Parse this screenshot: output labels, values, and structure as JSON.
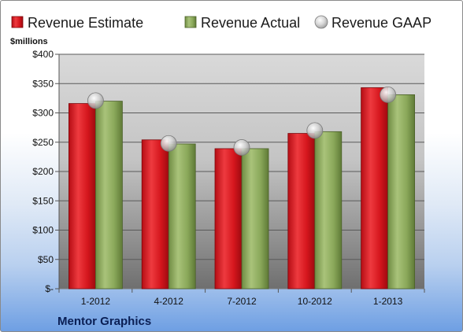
{
  "chart_data": {
    "type": "bar",
    "title": "",
    "company": "Mentor Graphics",
    "ylabel": "$millions",
    "ylim": [
      0,
      400
    ],
    "yticks": [
      0,
      50,
      100,
      150,
      200,
      250,
      300,
      350,
      400
    ],
    "ytick_labels": [
      "$-",
      "$50",
      "$100",
      "$150",
      "$200",
      "$250",
      "$300",
      "$350",
      "$400"
    ],
    "categories": [
      "1-2012",
      "4-2012",
      "7-2012",
      "10-2012",
      "1-2013"
    ],
    "series": [
      {
        "name": "Revenue Estimate",
        "kind": "bar",
        "color": "#d0151c",
        "values": [
          316,
          254,
          239,
          265,
          343
        ]
      },
      {
        "name": "Revenue Actual",
        "kind": "bar",
        "color": "#8aa85a",
        "values": [
          320,
          247,
          239,
          268,
          331
        ]
      },
      {
        "name": "Revenue GAAP",
        "kind": "marker",
        "color": "#c8c8c8",
        "values": [
          321,
          248,
          241,
          270,
          331
        ]
      }
    ],
    "legend_position": "top",
    "grid": true
  }
}
